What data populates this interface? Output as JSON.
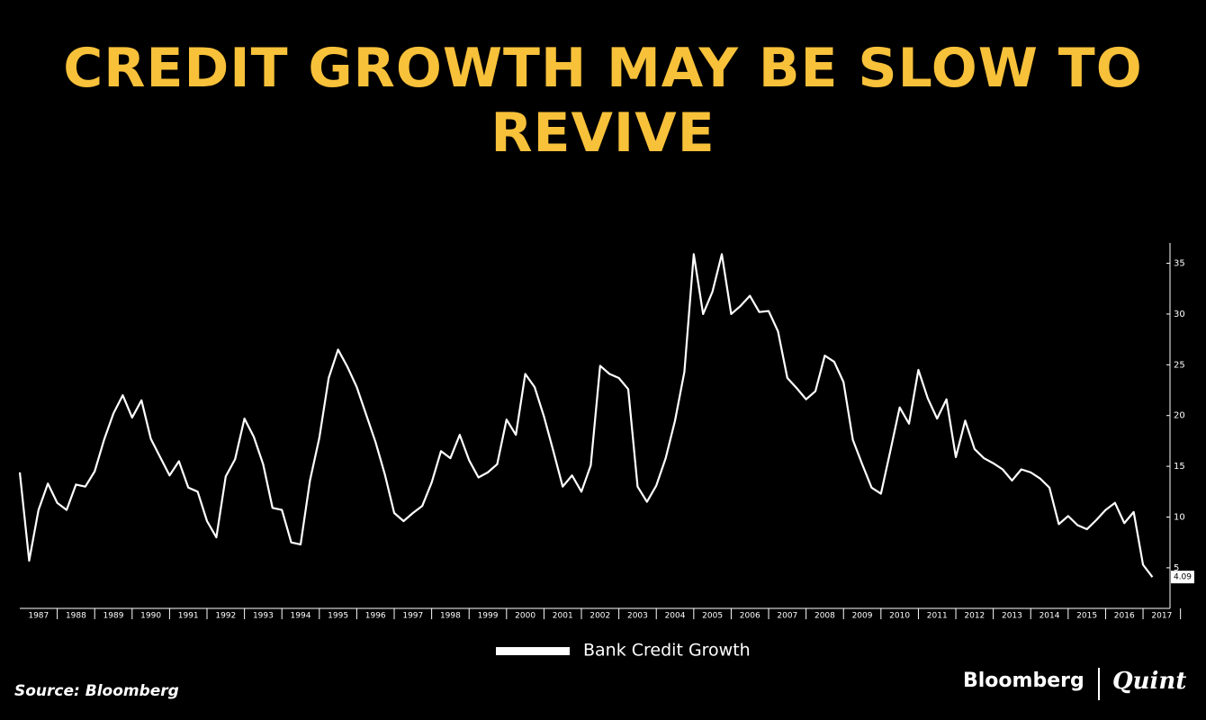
{
  "header": {
    "title": "CREDIT GROWTH MAY BE SLOW TO REVIVE"
  },
  "chart_data": {
    "type": "line",
    "x": [
      1987,
      1987.25,
      1987.5,
      1987.75,
      1988,
      1988.25,
      1988.5,
      1988.75,
      1989,
      1989.25,
      1989.5,
      1989.75,
      1990,
      1990.25,
      1990.5,
      1990.75,
      1991,
      1991.25,
      1991.5,
      1991.75,
      1992,
      1992.25,
      1992.5,
      1992.75,
      1993,
      1993.25,
      1993.5,
      1993.75,
      1994,
      1994.25,
      1994.5,
      1994.75,
      1995,
      1995.25,
      1995.5,
      1995.75,
      1996,
      1996.25,
      1996.5,
      1996.75,
      1997,
      1997.25,
      1997.5,
      1997.75,
      1998,
      1998.25,
      1998.5,
      1998.75,
      1999,
      1999.25,
      1999.5,
      1999.75,
      2000,
      2000.25,
      2000.5,
      2000.75,
      2001,
      2001.25,
      2001.5,
      2001.75,
      2002,
      2002.25,
      2002.5,
      2002.75,
      2003,
      2003.25,
      2003.5,
      2003.75,
      2004,
      2004.25,
      2004.5,
      2004.75,
      2005,
      2005.25,
      2005.5,
      2005.75,
      2006,
      2006.25,
      2006.5,
      2006.75,
      2007,
      2007.25,
      2007.5,
      2007.75,
      2008,
      2008.25,
      2008.5,
      2008.75,
      2009,
      2009.25,
      2009.5,
      2009.75,
      2010,
      2010.25,
      2010.5,
      2010.75,
      2011,
      2011.25,
      2011.5,
      2011.75,
      2012,
      2012.25,
      2012.5,
      2012.75,
      2013,
      2013.25,
      2013.5,
      2013.75,
      2014,
      2014.25,
      2014.5,
      2014.75,
      2015,
      2015.25,
      2015.5,
      2015.75,
      2016,
      2016.25,
      2016.5,
      2016.75,
      2017,
      2017.25
    ],
    "series": [
      {
        "name": "Bank Credit Growth",
        "color": "#ffffff",
        "values": [
          14.4,
          5.7,
          10.7,
          13.3,
          11.4,
          10.7,
          13.2,
          13.0,
          14.5,
          17.6,
          20.2,
          22.0,
          19.8,
          21.5,
          17.7,
          15.9,
          14.1,
          15.5,
          12.9,
          12.5,
          9.6,
          8.0,
          14.0,
          15.7,
          19.7,
          17.9,
          15.2,
          10.9,
          10.7,
          7.5,
          7.3,
          13.6,
          17.8,
          23.7,
          26.5,
          24.8,
          22.8,
          20.1,
          17.4,
          14.2,
          10.4,
          9.6,
          10.4,
          11.1,
          13.4,
          16.5,
          15.8,
          18.1,
          15.6,
          13.9,
          14.4,
          15.2,
          19.6,
          18.1,
          24.1,
          22.8,
          19.9,
          16.5,
          13.0,
          14.1,
          12.5,
          15.1,
          24.9,
          24.1,
          23.7,
          22.6,
          13.0,
          11.5,
          13.1,
          15.8,
          19.5,
          24.3,
          35.9,
          30.0,
          32.2,
          35.9,
          30.0,
          30.8,
          31.8,
          30.2,
          30.3,
          28.3,
          23.7,
          22.7,
          21.6,
          22.4,
          25.9,
          25.3,
          23.3,
          17.6,
          15.2,
          12.9,
          12.3,
          16.5,
          20.8,
          19.2,
          24.5,
          21.7,
          19.7,
          21.6,
          15.9,
          19.5,
          16.7,
          15.8,
          15.3,
          14.7,
          13.6,
          14.7,
          14.4,
          13.8,
          12.9,
          9.3,
          10.1,
          9.2,
          8.8,
          9.7,
          10.7,
          11.4,
          9.4,
          10.5,
          5.3,
          4.09
        ]
      }
    ],
    "xlim": [
      1987,
      2017.72
    ],
    "xticks": [
      1987,
      1988,
      1989,
      1990,
      1991,
      1992,
      1993,
      1994,
      1995,
      1996,
      1997,
      1998,
      1999,
      2000,
      2001,
      2002,
      2003,
      2004,
      2005,
      2006,
      2007,
      2008,
      2009,
      2010,
      2011,
      2012,
      2013,
      2014,
      2015,
      2016,
      2017
    ],
    "ylim": [
      1,
      37
    ],
    "yticks": [
      5,
      10,
      15,
      20,
      25,
      30,
      35
    ]
  },
  "footer": {
    "source": "Source: Bloomberg",
    "brand": "Bloomberg",
    "brand2": "Quint"
  }
}
